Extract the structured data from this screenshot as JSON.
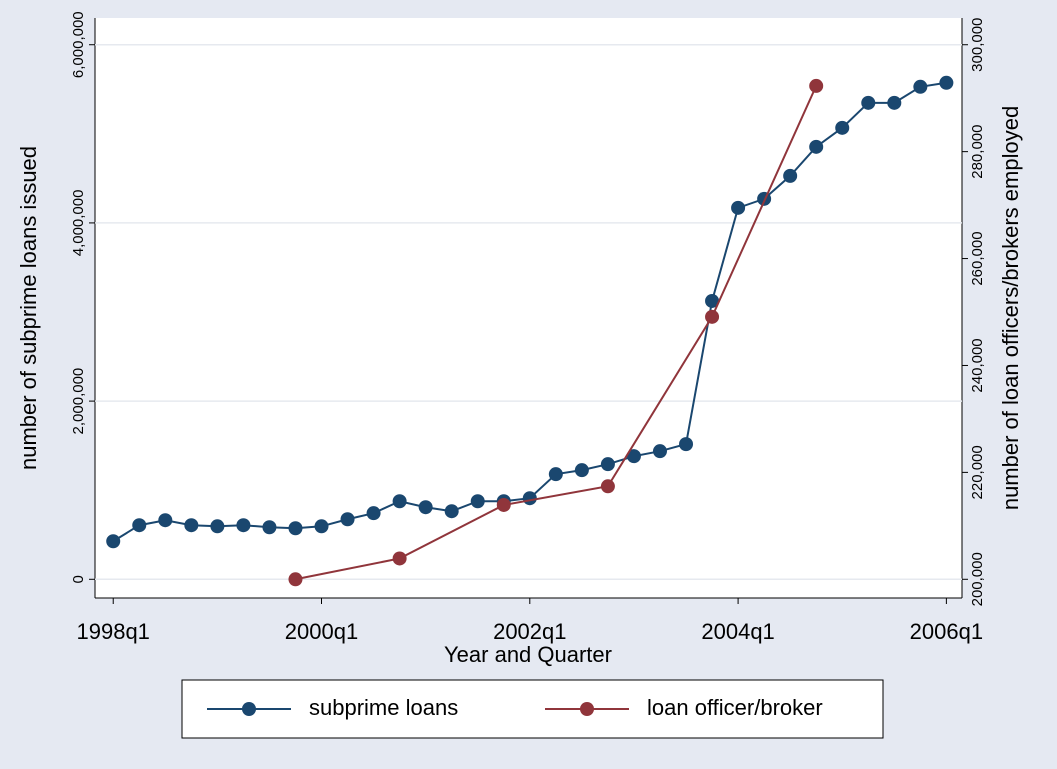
{
  "chart_data": {
    "type": "line",
    "xlabel": "Year and Quarter",
    "ylabel": "number of subprime loans issued",
    "y2label": "number of loan officers/brokers employed",
    "xlim": [
      151.3,
      184.6
    ],
    "xticks": [
      {
        "value": 152,
        "label": "1998q1"
      },
      {
        "value": 160,
        "label": "2000q1"
      },
      {
        "value": 168,
        "label": "2002q1"
      },
      {
        "value": 176,
        "label": "2004q1"
      },
      {
        "value": 184,
        "label": "2006q1"
      }
    ],
    "ylim": [
      -210000,
      6300000
    ],
    "yticks": [
      0,
      {
        "value": 2000000,
        "label": "2,000,000"
      },
      {
        "value": 4000000,
        "label": "4,000,000"
      },
      {
        "value": 6000000,
        "label": "6,000,000"
      }
    ],
    "y2lim": [
      196500,
      305000
    ],
    "y2ticks": [
      {
        "value": 200000,
        "label": "200,000"
      },
      {
        "value": 220000,
        "label": "220,000"
      },
      {
        "value": 240000,
        "label": "240,000"
      },
      {
        "value": 260000,
        "label": "260,000"
      },
      {
        "value": 280000,
        "label": "280,000"
      },
      {
        "value": 300000,
        "label": "300,000"
      }
    ],
    "grid": true,
    "legend": "bottom",
    "series": [
      {
        "name": "subprime loans",
        "color": "#1a476f",
        "x": [
          152,
          153,
          154,
          155,
          156,
          157,
          158,
          159,
          160,
          161,
          162,
          163,
          164,
          165,
          166,
          167,
          168,
          169,
          170,
          171,
          172,
          173,
          174,
          175,
          176,
          177,
          178,
          179,
          180,
          181,
          182,
          183,
          184
        ],
        "values": [
          427000,
          607000,
          663000,
          607000,
          595000,
          607000,
          584000,
          573000,
          595000,
          674000,
          742000,
          876000,
          809000,
          764000,
          876000,
          876000,
          910000,
          1180000,
          1225000,
          1292000,
          1382000,
          1438000,
          1517000,
          3124000,
          4169000,
          4270000,
          4528000,
          4854000,
          5067000,
          5348000,
          5348000,
          5528000,
          5573000
        ]
      },
      {
        "name": "loan officer/broker",
        "color": "#90353b",
        "axis": "y2",
        "x": [
          159,
          163,
          167,
          171,
          175,
          179
        ],
        "values": [
          200000,
          203900,
          213900,
          217400,
          249100,
          292300
        ]
      }
    ]
  }
}
